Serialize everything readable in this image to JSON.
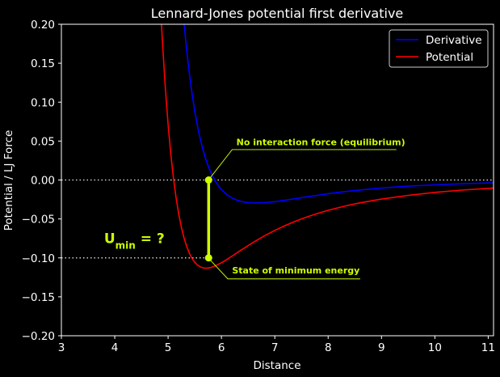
{
  "chart_data": {
    "type": "line",
    "title": "Lennard-Jones potential first derivative",
    "xlabel": "Distance",
    "ylabel": "Potential / LJ Force",
    "xlim": [
      3,
      11.1
    ],
    "ylim": [
      -0.2,
      0.2
    ],
    "xticks": [
      3,
      4,
      5,
      6,
      7,
      8,
      9,
      10,
      11
    ],
    "yticks": [
      -0.2,
      -0.15,
      -0.1,
      -0.05,
      0.0,
      0.05,
      0.1,
      0.15,
      0.2
    ],
    "xtick_labels": [
      "3",
      "4",
      "5",
      "6",
      "7",
      "8",
      "9",
      "10",
      "11"
    ],
    "ytick_labels": [
      "−0.20",
      "−0.15",
      "−0.10",
      "−0.05",
      "0.00",
      "0.05",
      "0.10",
      "0.15",
      "0.20"
    ],
    "grid": false,
    "legend": "top-right",
    "series": [
      {
        "name": "Derivative",
        "color": "#0000ff",
        "x": [
          5.3,
          5.35,
          5.4,
          5.45,
          5.5,
          5.55,
          5.6,
          5.65,
          5.7,
          5.75,
          5.8,
          5.85,
          5.9,
          5.95,
          6.0,
          6.1,
          6.2,
          6.3,
          6.4,
          6.5,
          6.6,
          6.8,
          7.0,
          7.2,
          7.4,
          7.6,
          7.8,
          8.0,
          8.3,
          8.6,
          9.0,
          9.5,
          10.0,
          10.5,
          11.1
        ],
        "y": [
          0.2004,
          0.1659,
          0.1361,
          0.1105,
          0.0886,
          0.0698,
          0.0537,
          0.04,
          0.0283,
          0.0184,
          0.01,
          0.0029,
          -0.0031,
          -0.008,
          -0.0122,
          -0.0187,
          -0.0232,
          -0.0262,
          -0.0281,
          -0.0291,
          -0.0295,
          -0.0291,
          -0.0278,
          -0.0259,
          -0.0238,
          -0.0216,
          -0.0196,
          -0.0176,
          -0.015,
          -0.0128,
          -0.0103,
          -0.0079,
          -0.0062,
          -0.0048,
          -0.0036
        ]
      },
      {
        "name": "Potential",
        "color": "#ff0000",
        "x": [
          4.87,
          4.9,
          4.95,
          5.0,
          5.05,
          5.1,
          5.15,
          5.2,
          5.25,
          5.3,
          5.35,
          5.4,
          5.45,
          5.5,
          5.55,
          5.6,
          5.65,
          5.7,
          5.75,
          5.8,
          5.85,
          5.9,
          5.95,
          6.0,
          6.1,
          6.2,
          6.3,
          6.4,
          6.5,
          6.6,
          6.8,
          7.0,
          7.2,
          7.4,
          7.6,
          7.8,
          8.0,
          8.3,
          8.6,
          9.0,
          9.5,
          10.0,
          10.5,
          11.1
        ],
        "y": [
          0.2069,
          0.1706,
          0.1165,
          0.0714,
          0.0339,
          0.0028,
          -0.0229,
          -0.0439,
          -0.061,
          -0.0747,
          -0.0856,
          -0.0942,
          -0.1007,
          -0.1056,
          -0.1091,
          -0.1114,
          -0.1127,
          -0.1132,
          -0.113,
          -0.1124,
          -0.1112,
          -0.1098,
          -0.1081,
          -0.1063,
          -0.1021,
          -0.0977,
          -0.0931,
          -0.0886,
          -0.0842,
          -0.0799,
          -0.0719,
          -0.0647,
          -0.0583,
          -0.0526,
          -0.0475,
          -0.043,
          -0.039,
          -0.0337,
          -0.0293,
          -0.0245,
          -0.0197,
          -0.0159,
          -0.013,
          -0.0103
        ]
      }
    ],
    "reference_lines": [
      {
        "axis": "y",
        "value": 0.0,
        "color": "#cccccc",
        "style": "dotted"
      },
      {
        "axis": "y",
        "value": -0.1,
        "color": "#cccccc",
        "style": "dotted"
      }
    ],
    "markers": [
      {
        "x": 5.76,
        "y": 0.0,
        "color": "#ccff00"
      },
      {
        "x": 5.76,
        "y": -0.1,
        "color": "#ccff00"
      }
    ],
    "annotations": [
      {
        "text": "No interaction force (equilibrium)",
        "x": 6.28,
        "y": 0.049,
        "color": "#ccff00"
      },
      {
        "text": "State of minimum energy",
        "x": 6.2,
        "y": -0.116,
        "color": "#ccff00"
      }
    ],
    "umin_label": {
      "main": "U",
      "sub": "min",
      "rest": " = ?",
      "color": "#ccff00"
    }
  }
}
